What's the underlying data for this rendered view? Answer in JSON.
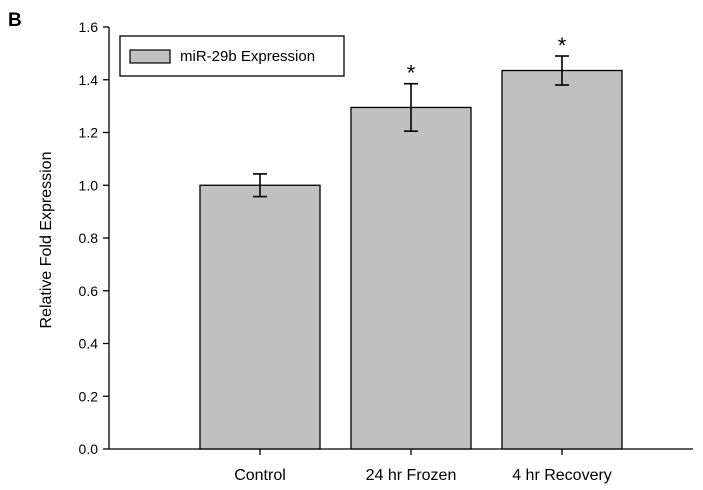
{
  "panel_label": "B",
  "chart_data": {
    "type": "bar",
    "title": "",
    "xlabel": "",
    "ylabel": "Relative Fold Expression",
    "ylim": [
      0,
      1.6
    ],
    "yticks": [
      "0.0",
      "0.2",
      "0.4",
      "0.6",
      "0.8",
      "1.0",
      "1.2",
      "1.4",
      "1.6"
    ],
    "categories": [
      "Control",
      "24 hr Frozen",
      "4 hr Recovery"
    ],
    "series": [
      {
        "name": "miR-29b Expression",
        "values": [
          1.0,
          1.295,
          1.435
        ],
        "error": [
          0.043,
          0.09,
          0.055
        ],
        "significance": [
          "",
          "*",
          "*"
        ]
      }
    ],
    "legend": {
      "position": "top-left"
    },
    "grid": false,
    "colors": {
      "bar_fill": "#c0c0c0",
      "stroke": "#000000"
    }
  }
}
